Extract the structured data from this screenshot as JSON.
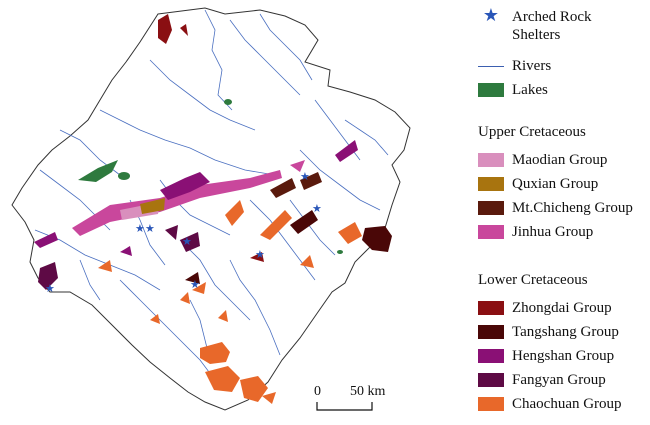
{
  "legend": {
    "symbols": [
      {
        "label_line1": "Arched Rock",
        "label_line2": "Shelters",
        "icon": "star-icon",
        "color": "#2a56b8"
      },
      {
        "label": "Rivers",
        "color": "#3b5fb0"
      },
      {
        "label": "Lakes",
        "color": "#2e7a3e"
      }
    ],
    "upper_title": "Upper Cretaceous",
    "upper": [
      {
        "label": "Maodian Group",
        "color": "#d98fbd"
      },
      {
        "label": "Quxian Group",
        "color": "#a8740f"
      },
      {
        "label": "Mt.Chicheng Group",
        "color": "#5a1a0d"
      },
      {
        "label": "Jinhua Group",
        "color": "#c9479c"
      }
    ],
    "lower_title": "Lower Cretaceous",
    "lower": [
      {
        "label": "Zhongdai Group",
        "color": "#8a0f12"
      },
      {
        "label": "Tangshang Group",
        "color": "#4a0707"
      },
      {
        "label": "Hengshan Group",
        "color": "#8a1075"
      },
      {
        "label": "Fangyan Group",
        "color": "#5e0a45"
      },
      {
        "label": "Chaochuan Group",
        "color": "#e8682a"
      }
    ]
  },
  "scale": {
    "zero": "0",
    "distance": "50 km"
  }
}
